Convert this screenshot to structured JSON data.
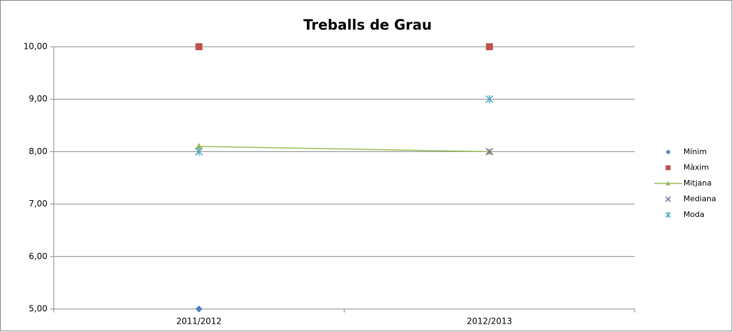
{
  "chart_data": {
    "type": "line",
    "title": "Treballs de Grau",
    "categories": [
      "2011/2012",
      "2012/2013"
    ],
    "series": [
      {
        "name": "Mínim",
        "color": "#4f81bd",
        "marker": "diamond",
        "line": false,
        "values": [
          5,
          null
        ]
      },
      {
        "name": "Màxim",
        "color": "#c0504d",
        "marker": "square",
        "line": false,
        "values": [
          10,
          10
        ]
      },
      {
        "name": "Mitjana",
        "color": "#9bbb59",
        "marker": "triangle",
        "line": true,
        "values": [
          8.1,
          8
        ]
      },
      {
        "name": "Mediana",
        "color": "#8064a2",
        "marker": "x",
        "line": false,
        "values": [
          8,
          8
        ]
      },
      {
        "name": "Moda",
        "color": "#4bacc6",
        "marker": "star",
        "line": false,
        "values": [
          8,
          9
        ]
      }
    ],
    "ylim": [
      5,
      10
    ],
    "yticks": [
      {
        "value": 5,
        "label": "5,00"
      },
      {
        "value": 6,
        "label": "6,00"
      },
      {
        "value": 7,
        "label": "7,00"
      },
      {
        "value": 8,
        "label": "8,00"
      },
      {
        "value": 9,
        "label": "9,00"
      },
      {
        "value": 10,
        "label": "10,00"
      }
    ],
    "grid": true,
    "legend": "right"
  }
}
